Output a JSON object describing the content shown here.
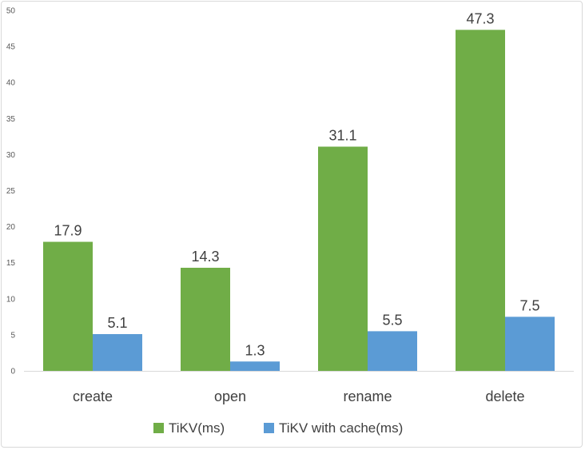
{
  "chart_data": {
    "type": "bar",
    "categories": [
      "create",
      "open",
      "rename",
      "delete"
    ],
    "series": [
      {
        "name": "TiKV(ms)",
        "color": "#70ad47",
        "values": [
          17.9,
          14.3,
          31.1,
          47.3
        ]
      },
      {
        "name": "TiKV with cache(ms)",
        "color": "#5b9bd5",
        "values": [
          5.1,
          1.3,
          5.5,
          7.5
        ]
      }
    ],
    "yticks": [
      "0",
      "5",
      "10",
      "15",
      "20",
      "25",
      "30",
      "35",
      "40",
      "45",
      "50"
    ],
    "ylim": [
      0,
      50
    ],
    "grid": false,
    "legend": "bottom"
  }
}
